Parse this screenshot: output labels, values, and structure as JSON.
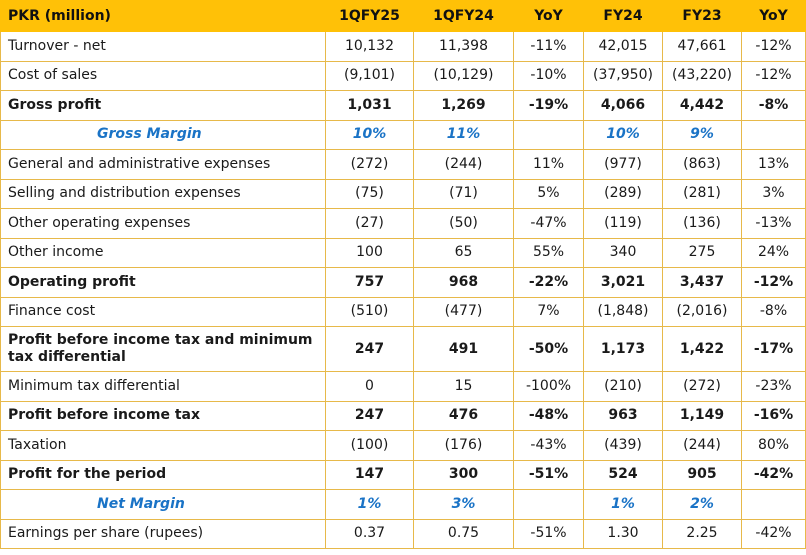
{
  "table": {
    "headers": [
      "PKR (million)",
      "1QFY25",
      "1QFY24",
      "YoY",
      "FY24",
      "FY23",
      "YoY"
    ],
    "rows": [
      {
        "style": "normal",
        "cells": [
          "Turnover - net",
          "10,132",
          "11,398",
          "-11%",
          "42,015",
          "47,661",
          "-12%"
        ]
      },
      {
        "style": "normal",
        "cells": [
          "Cost of sales",
          "(9,101)",
          "(10,129)",
          "-10%",
          "(37,950)",
          "(43,220)",
          "-12%"
        ]
      },
      {
        "style": "bold",
        "cells": [
          "Gross profit",
          "1,031",
          "1,269",
          "-19%",
          "4,066",
          "4,442",
          "-8%"
        ]
      },
      {
        "style": "margin",
        "cells": [
          "Gross Margin",
          "10%",
          "11%",
          "",
          "10%",
          "9%",
          ""
        ]
      },
      {
        "style": "normal",
        "cells": [
          "General and administrative expenses",
          "(272)",
          "(244)",
          "11%",
          "(977)",
          "(863)",
          "13%"
        ]
      },
      {
        "style": "normal",
        "cells": [
          "Selling and distribution expenses",
          "(75)",
          "(71)",
          "5%",
          "(289)",
          "(281)",
          "3%"
        ]
      },
      {
        "style": "normal",
        "cells": [
          "Other operating expenses",
          "(27)",
          "(50)",
          "-47%",
          "(119)",
          "(136)",
          "-13%"
        ]
      },
      {
        "style": "normal",
        "cells": [
          "Other income",
          "100",
          "65",
          "55%",
          "340",
          "275",
          "24%"
        ]
      },
      {
        "style": "bold",
        "cells": [
          "Operating profit",
          "757",
          "968",
          "-22%",
          "3,021",
          "3,437",
          "-12%"
        ]
      },
      {
        "style": "normal",
        "cells": [
          "Finance cost",
          "(510)",
          "(477)",
          "7%",
          "(1,848)",
          "(2,016)",
          "-8%"
        ]
      },
      {
        "style": "bold-tall",
        "cells": [
          "Profit before income tax and minimum tax differential",
          "247",
          "491",
          "-50%",
          "1,173",
          "1,422",
          "-17%"
        ]
      },
      {
        "style": "normal",
        "cells": [
          "Minimum tax differential",
          "0",
          "15",
          "-100%",
          "(210)",
          "(272)",
          "-23%"
        ]
      },
      {
        "style": "bold",
        "cells": [
          "Profit before income tax",
          "247",
          "476",
          "-48%",
          "963",
          "1,149",
          "-16%"
        ]
      },
      {
        "style": "normal",
        "cells": [
          "Taxation",
          "(100)",
          "(176)",
          "-43%",
          "(439)",
          "(244)",
          "80%"
        ]
      },
      {
        "style": "bold",
        "cells": [
          "Profit for the period",
          "147",
          "300",
          "-51%",
          "524",
          "905",
          "-42%"
        ]
      },
      {
        "style": "margin",
        "cells": [
          "Net Margin",
          "1%",
          "3%",
          "",
          "1%",
          "2%",
          ""
        ]
      },
      {
        "style": "normal",
        "cells": [
          "Earnings per share (rupees)",
          "0.37",
          "0.75",
          "-51%",
          "1.30",
          "2.25",
          "-42%"
        ]
      }
    ]
  },
  "colors": {
    "header_bg": "#ffc107",
    "border": "#e7b94a",
    "margin_text": "#1a73c6"
  }
}
